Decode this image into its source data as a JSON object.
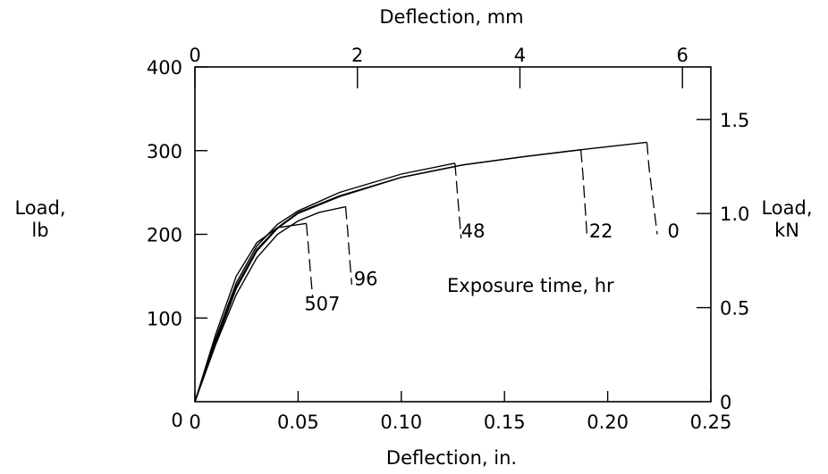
{
  "chart_data": {
    "type": "line",
    "bottom_axis": {
      "label": "Deflection, in.",
      "range": [
        0,
        0.25
      ],
      "ticks": [
        "0",
        "0.05",
        "0.10",
        "0.15",
        "0.20",
        "0.25"
      ],
      "tick_values": [
        0,
        0.05,
        0.1,
        0.15,
        0.2,
        0.25
      ]
    },
    "top_axis": {
      "label": "Deflection, mm",
      "range": [
        0,
        6.35
      ],
      "ticks": [
        "0",
        "2",
        "4",
        "6"
      ],
      "tick_values": [
        0,
        2,
        4,
        6
      ]
    },
    "left_axis": {
      "label_line1": "Load,",
      "label_line2": "lb",
      "range": [
        0,
        400
      ],
      "ticks": [
        "100",
        "200",
        "300",
        "400"
      ],
      "tick_values": [
        100,
        200,
        300,
        400
      ],
      "origin_label": "0"
    },
    "right_axis": {
      "label_line1": "Load,",
      "label_line2": "kN",
      "range": [
        0,
        1.779
      ],
      "ticks": [
        "0",
        "0.5",
        "1.0",
        "1.5"
      ],
      "tick_values": [
        0,
        0.5,
        1.0,
        1.5
      ]
    },
    "annotation": "Exposure time, hr",
    "series": [
      {
        "name": "0",
        "color": "#000000",
        "points": [
          [
            0,
            0
          ],
          [
            0.01,
            70
          ],
          [
            0.02,
            135
          ],
          [
            0.03,
            180
          ],
          [
            0.04,
            207
          ],
          [
            0.05,
            225
          ],
          [
            0.07,
            245
          ],
          [
            0.1,
            268
          ],
          [
            0.13,
            283
          ],
          [
            0.16,
            293
          ],
          [
            0.19,
            302
          ],
          [
            0.219,
            310
          ]
        ],
        "failure": [
          [
            0.219,
            310
          ],
          [
            0.22,
            280
          ],
          [
            0.222,
            240
          ],
          [
            0.224,
            200
          ]
        ]
      },
      {
        "name": "22",
        "color": "#000000",
        "points": [
          [
            0,
            0
          ],
          [
            0.01,
            72
          ],
          [
            0.02,
            138
          ],
          [
            0.03,
            182
          ],
          [
            0.04,
            208
          ],
          [
            0.05,
            226
          ],
          [
            0.07,
            246
          ],
          [
            0.1,
            268
          ],
          [
            0.13,
            283
          ],
          [
            0.16,
            293
          ],
          [
            0.187,
            301
          ]
        ],
        "failure": [
          [
            0.187,
            301
          ],
          [
            0.188,
            272
          ],
          [
            0.189,
            235
          ],
          [
            0.19,
            198
          ]
        ]
      },
      {
        "name": "48",
        "color": "#000000",
        "points": [
          [
            0,
            0
          ],
          [
            0.01,
            75
          ],
          [
            0.02,
            142
          ],
          [
            0.03,
            186
          ],
          [
            0.04,
            212
          ],
          [
            0.05,
            228
          ],
          [
            0.07,
            250
          ],
          [
            0.1,
            272
          ],
          [
            0.126,
            285
          ]
        ],
        "failure": [
          [
            0.126,
            285
          ],
          [
            0.127,
            255
          ],
          [
            0.128,
            225
          ],
          [
            0.129,
            195
          ]
        ]
      },
      {
        "name": "96",
        "color": "#000000",
        "points": [
          [
            0,
            0
          ],
          [
            0.01,
            68
          ],
          [
            0.02,
            128
          ],
          [
            0.03,
            172
          ],
          [
            0.04,
            200
          ],
          [
            0.05,
            216
          ],
          [
            0.06,
            226
          ],
          [
            0.073,
            233
          ]
        ],
        "failure": [
          [
            0.073,
            233
          ],
          [
            0.074,
            205
          ],
          [
            0.075,
            170
          ],
          [
            0.076,
            140
          ]
        ]
      },
      {
        "name": "507",
        "color": "#000000",
        "points": [
          [
            0,
            0
          ],
          [
            0.01,
            80
          ],
          [
            0.02,
            150
          ],
          [
            0.03,
            190
          ],
          [
            0.04,
            208
          ],
          [
            0.054,
            213
          ]
        ],
        "failure": [
          [
            0.054,
            213
          ],
          [
            0.055,
            185
          ],
          [
            0.056,
            155
          ],
          [
            0.057,
            125
          ]
        ]
      }
    ],
    "series_label_positions": {
      "0": [
        0.229,
        205
      ],
      "22": [
        0.191,
        205
      ],
      "48": [
        0.129,
        205
      ],
      "96": [
        0.077,
        148
      ],
      "507": [
        0.053,
        118
      ]
    }
  }
}
